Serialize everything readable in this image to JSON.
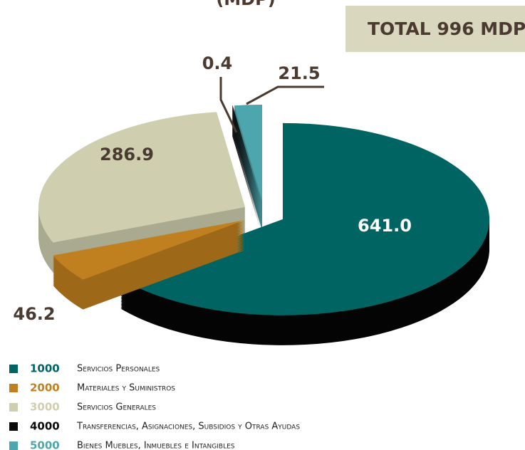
{
  "chart_data": {
    "type": "pie",
    "title": "(MDP)",
    "annotation": "TOTAL 996 MDP",
    "categories": [
      "1000",
      "2000",
      "3000",
      "4000",
      "5000"
    ],
    "descriptions": [
      "Servicios Personales",
      "Materiales y Suministros",
      "Servicios Generales",
      "Transferencias, Asignaciones, Subsidios y Otras Ayudas",
      "Bienes Muebles, Inmuebles e Intangibles"
    ],
    "values": [
      641.0,
      46.2,
      286.9,
      0.4,
      21.5
    ],
    "value_labels": [
      "641.0",
      "46.2",
      "286.9",
      "0.4",
      "21.5"
    ],
    "colors": [
      "#006462",
      "#c0801f",
      "#cfcfb0",
      "#0a0a0a",
      "#4da6ae"
    ]
  }
}
